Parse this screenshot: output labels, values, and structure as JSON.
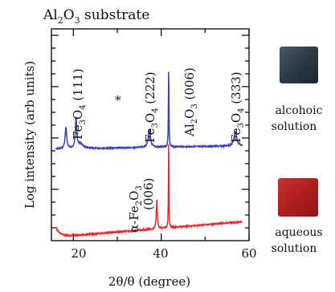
{
  "chart_data": {
    "type": "line",
    "title": {
      "pre": "Al",
      "s1": "2",
      "mid": "O",
      "s2": "3",
      "post": " substrate"
    },
    "xlabel": "2θ/θ (degree)",
    "ylabel": "Log intensity (arb units)",
    "xlim": [
      15,
      60
    ],
    "x_ticks": [
      {
        "value": 20,
        "label": "20"
      },
      {
        "value": 40,
        "label": "40"
      },
      {
        "value": 60,
        "label": "60"
      }
    ],
    "grid": false,
    "series": [
      {
        "color": "#3b3fb0",
        "peaks": [
          {
            "x": 18.3,
            "h": 0.22,
            "w": 0.22
          },
          {
            "x": 20.6,
            "h": 0.32,
            "w": 0.18
          },
          {
            "x": 21.6,
            "h": 0.05,
            "w": 0.7
          },
          {
            "x": 37.3,
            "h": 0.18,
            "w": 0.3
          },
          {
            "x": 41.7,
            "h": 0.85,
            "w": 0.07
          },
          {
            "x": 56.9,
            "h": 0.15,
            "w": 0.35
          }
        ]
      },
      {
        "color": "#e8282a",
        "peaks": [
          {
            "x": 39.0,
            "h": 0.3,
            "w": 0.14
          },
          {
            "x": 41.7,
            "h": 0.96,
            "w": 0.06
          }
        ]
      }
    ],
    "annotations": [
      {
        "id": "fe3o4_111",
        "parts": {
          "a": "Fe",
          "b": "3",
          "c": "O",
          "d": "4",
          "e": " (111)"
        }
      },
      {
        "id": "star",
        "text": "*"
      },
      {
        "id": "fe3o4_222",
        "parts": {
          "a": "Fe",
          "b": "3",
          "c": "O",
          "d": "4",
          "e": " (222)"
        }
      },
      {
        "id": "al2o3_006",
        "parts": {
          "a": "Al",
          "b": "2",
          "c": "O",
          "d": "3",
          "e": " (006)"
        }
      },
      {
        "id": "fe3o4_333",
        "parts": {
          "a": "Fe",
          "b": "3",
          "c": "O",
          "d": "4",
          "e": " (333)"
        }
      },
      {
        "id": "fe2o3",
        "parts": {
          "pre": "α-Fe",
          "b": "2",
          "c": "O",
          "d": "3"
        },
        "line2": "(006)"
      }
    ]
  },
  "samples": [
    {
      "color": "#2d3a46",
      "label_line1": "alcohoic",
      "label_line2": "solution"
    },
    {
      "color": "#b01e1e",
      "label_line1": "aqueous",
      "label_line2": "solution"
    }
  ]
}
